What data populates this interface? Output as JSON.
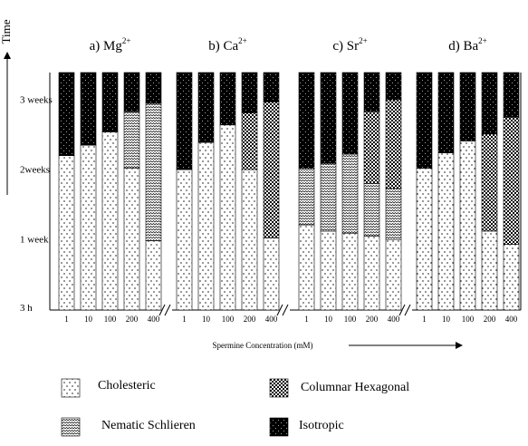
{
  "chart_data": {
    "type": "stacked-bar",
    "y_label": "Time",
    "x_label": "Spermine Concentration (mM)",
    "groups": [
      {
        "label": "a) Mg",
        "superscript": "2+"
      },
      {
        "label": "b) Ca",
        "superscript": "2+"
      },
      {
        "label": "c) Sr",
        "superscript": "2+"
      },
      {
        "label": "d) Ba",
        "superscript": "2+"
      }
    ],
    "categories": [
      "1",
      "10",
      "100",
      "200",
      "400",
      "1",
      "10",
      "100",
      "200",
      "400",
      "1",
      "10",
      "100",
      "200",
      "400",
      "1",
      "10",
      "100",
      "200",
      "400"
    ],
    "ylim": [
      0,
      3.4
    ],
    "yticks": [
      {
        "value": 0.018,
        "label": "3 h"
      },
      {
        "value": 1,
        "label": "1 week"
      },
      {
        "value": 2,
        "label": "2weeks"
      },
      {
        "value": 3,
        "label": "3 weeks"
      }
    ],
    "series": [
      {
        "name": "Cholesteric",
        "color": "#ffffff",
        "values": [
          2.21,
          2.36,
          2.55,
          2.03,
          0.99,
          2.01,
          2.4,
          2.65,
          2.01,
          1.03,
          1.22,
          1.13,
          1.1,
          1.06,
          1.01,
          2.03,
          2.25,
          2.42,
          1.13,
          0.94
        ]
      },
      {
        "name": "Nematic Schlieren",
        "color": "#ffffff",
        "values": [
          0,
          0,
          0,
          0.81,
          1.97,
          0,
          0,
          0,
          0,
          0,
          0.81,
          0.97,
          1.13,
          0.75,
          0.73,
          0,
          0,
          0,
          0,
          0
        ]
      },
      {
        "name": "Columnar Hexagonal",
        "color": "#ffffff",
        "values": [
          0,
          0,
          0,
          0,
          0,
          0,
          0,
          0,
          0.81,
          1.95,
          0,
          0,
          0,
          1.03,
          1.27,
          0,
          0,
          0,
          1.39,
          1.82
        ]
      },
      {
        "name": "Isotropic",
        "color": "#000000",
        "values": [
          1.19,
          1.04,
          0.85,
          0.56,
          0.44,
          1.39,
          1.0,
          0.75,
          0.58,
          0.42,
          1.37,
          1.3,
          1.17,
          0.56,
          0.39,
          1.37,
          1.15,
          0.98,
          0.88,
          0.64
        ]
      }
    ]
  }
}
